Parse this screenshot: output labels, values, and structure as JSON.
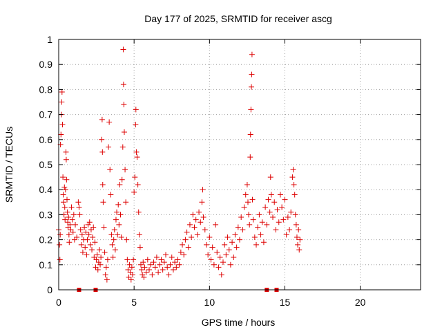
{
  "chart_data": {
    "type": "scatter",
    "title": "Day 177 of 2025, SRMTID for receiver ascg",
    "xlabel": "GPS time / hours",
    "ylabel": "SRMTID / TECUs",
    "xlim": [
      0,
      24
    ],
    "ylim": [
      0,
      1
    ],
    "xticks": [
      0,
      5,
      10,
      15,
      20
    ],
    "xtick_labels": [
      "0",
      "5",
      "10",
      "15",
      "20"
    ],
    "yticks": [
      0,
      0.1,
      0.2,
      0.3,
      0.4,
      0.5,
      0.6,
      0.7,
      0.8,
      0.9,
      1
    ],
    "ytick_labels": [
      "0",
      "0.1",
      "0.2",
      "0.3",
      "0.4",
      "0.5",
      "0.6",
      "0.7",
      "0.8",
      "0.9",
      "1"
    ],
    "grid": true,
    "marker": "+",
    "color": "#dd0000",
    "series": [
      {
        "name": "SRMTID",
        "points": [
          [
            0.0,
            0.24
          ],
          [
            0.05,
            0.18
          ],
          [
            0.08,
            0.12
          ],
          [
            0.1,
            0.22
          ],
          [
            0.12,
            0.58
          ],
          [
            0.15,
            0.62
          ],
          [
            0.18,
            0.7
          ],
          [
            0.2,
            0.75
          ],
          [
            0.22,
            0.79
          ],
          [
            0.25,
            0.66
          ],
          [
            0.28,
            0.45
          ],
          [
            0.3,
            0.38
          ],
          [
            0.32,
            0.35
          ],
          [
            0.35,
            0.3
          ],
          [
            0.38,
            0.41
          ],
          [
            0.4,
            0.33
          ],
          [
            0.42,
            0.28
          ],
          [
            0.45,
            0.4
          ],
          [
            0.48,
            0.55
          ],
          [
            0.5,
            0.52
          ],
          [
            0.52,
            0.44
          ],
          [
            0.55,
            0.36
          ],
          [
            0.58,
            0.31
          ],
          [
            0.6,
            0.27
          ],
          [
            0.62,
            0.25
          ],
          [
            0.65,
            0.29
          ],
          [
            0.68,
            0.22
          ],
          [
            0.7,
            0.19
          ],
          [
            0.75,
            0.26
          ],
          [
            0.8,
            0.24
          ],
          [
            0.85,
            0.33
          ],
          [
            0.9,
            0.28
          ],
          [
            0.95,
            0.23
          ],
          [
            1.0,
            0.3
          ],
          [
            1.05,
            0.2
          ],
          [
            1.1,
            0.26
          ],
          [
            1.2,
            0.21
          ],
          [
            1.3,
            0.35
          ],
          [
            1.35,
            0.33
          ],
          [
            1.4,
            0.3
          ],
          [
            1.45,
            0.24
          ],
          [
            1.5,
            0.18
          ],
          [
            1.55,
            0.22
          ],
          [
            1.6,
            0.15
          ],
          [
            1.65,
            0.2
          ],
          [
            1.7,
            0.25
          ],
          [
            1.75,
            0.17
          ],
          [
            1.8,
            0.23
          ],
          [
            1.85,
            0.14
          ],
          [
            1.9,
            0.2
          ],
          [
            1.95,
            0.26
          ],
          [
            2.0,
            0.22
          ],
          [
            2.05,
            0.27
          ],
          [
            2.1,
            0.18
          ],
          [
            2.15,
            0.24
          ],
          [
            2.2,
            0.16
          ],
          [
            2.25,
            0.21
          ],
          [
            2.3,
            0.25
          ],
          [
            2.35,
            0.13
          ],
          [
            2.4,
            0.19
          ],
          [
            2.45,
            0.09
          ],
          [
            2.5,
            0.12
          ],
          [
            2.55,
            0.14
          ],
          [
            2.6,
            0.08
          ],
          [
            2.65,
            0.11
          ],
          [
            2.7,
            0.16
          ],
          [
            2.75,
            0.1
          ],
          [
            2.8,
            0.13
          ],
          [
            2.85,
            0.6
          ],
          [
            2.88,
            0.68
          ],
          [
            2.9,
            0.55
          ],
          [
            2.92,
            0.42
          ],
          [
            2.95,
            0.35
          ],
          [
            3.0,
            0.25
          ],
          [
            3.05,
            0.15
          ],
          [
            3.1,
            0.06
          ],
          [
            3.15,
            0.09
          ],
          [
            3.2,
            0.04
          ],
          [
            3.25,
            0.12
          ],
          [
            3.3,
            0.57
          ],
          [
            3.35,
            0.67
          ],
          [
            3.4,
            0.48
          ],
          [
            3.45,
            0.38
          ],
          [
            3.5,
            0.22
          ],
          [
            3.55,
            0.18
          ],
          [
            3.6,
            0.13
          ],
          [
            3.65,
            0.2
          ],
          [
            3.7,
            0.24
          ],
          [
            3.75,
            0.16
          ],
          [
            3.8,
            0.28
          ],
          [
            3.85,
            0.31
          ],
          [
            3.9,
            0.22
          ],
          [
            3.95,
            0.34
          ],
          [
            4.0,
            0.26
          ],
          [
            4.05,
            0.42
          ],
          [
            4.1,
            0.3
          ],
          [
            4.15,
            0.21
          ],
          [
            4.2,
            0.44
          ],
          [
            4.25,
            0.57
          ],
          [
            4.28,
            0.96
          ],
          [
            4.3,
            0.82
          ],
          [
            4.32,
            0.74
          ],
          [
            4.35,
            0.63
          ],
          [
            4.4,
            0.48
          ],
          [
            4.45,
            0.35
          ],
          [
            4.5,
            0.2
          ],
          [
            4.55,
            0.12
          ],
          [
            4.6,
            0.08
          ],
          [
            4.65,
            0.05
          ],
          [
            4.7,
            0.1
          ],
          [
            4.75,
            0.07
          ],
          [
            4.8,
            0.04
          ],
          [
            4.85,
            0.09
          ],
          [
            4.9,
            0.06
          ],
          [
            4.95,
            0.12
          ],
          [
            5.0,
            0.39
          ],
          [
            5.05,
            0.45
          ],
          [
            5.1,
            0.66
          ],
          [
            5.12,
            0.72
          ],
          [
            5.15,
            0.55
          ],
          [
            5.2,
            0.53
          ],
          [
            5.25,
            0.42
          ],
          [
            5.3,
            0.31
          ],
          [
            5.35,
            0.22
          ],
          [
            5.4,
            0.17
          ],
          [
            5.45,
            0.1
          ],
          [
            5.5,
            0.08
          ],
          [
            5.55,
            0.06
          ],
          [
            5.6,
            0.11
          ],
          [
            5.65,
            0.05
          ],
          [
            5.7,
            0.09
          ],
          [
            5.8,
            0.07
          ],
          [
            5.9,
            0.12
          ],
          [
            6.0,
            0.08
          ],
          [
            6.1,
            0.1
          ],
          [
            6.2,
            0.06
          ],
          [
            6.3,
            0.11
          ],
          [
            6.4,
            0.09
          ],
          [
            6.5,
            0.13
          ],
          [
            6.6,
            0.07
          ],
          [
            6.7,
            0.1
          ],
          [
            6.8,
            0.12
          ],
          [
            6.9,
            0.08
          ],
          [
            7.0,
            0.11
          ],
          [
            7.1,
            0.14
          ],
          [
            7.2,
            0.09
          ],
          [
            7.3,
            0.06
          ],
          [
            7.4,
            0.1
          ],
          [
            7.5,
            0.13
          ],
          [
            7.6,
            0.08
          ],
          [
            7.7,
            0.11
          ],
          [
            7.8,
            0.09
          ],
          [
            7.9,
            0.12
          ],
          [
            8.0,
            0.1
          ],
          [
            8.1,
            0.15
          ],
          [
            8.2,
            0.18
          ],
          [
            8.3,
            0.14
          ],
          [
            8.4,
            0.2
          ],
          [
            8.5,
            0.23
          ],
          [
            8.6,
            0.17
          ],
          [
            8.7,
            0.26
          ],
          [
            8.8,
            0.21
          ],
          [
            8.9,
            0.3
          ],
          [
            9.0,
            0.25
          ],
          [
            9.1,
            0.28
          ],
          [
            9.2,
            0.22
          ],
          [
            9.3,
            0.31
          ],
          [
            9.4,
            0.27
          ],
          [
            9.5,
            0.35
          ],
          [
            9.55,
            0.4
          ],
          [
            9.6,
            0.29
          ],
          [
            9.7,
            0.24
          ],
          [
            9.8,
            0.18
          ],
          [
            9.9,
            0.14
          ],
          [
            10.0,
            0.21
          ],
          [
            10.1,
            0.12
          ],
          [
            10.2,
            0.17
          ],
          [
            10.3,
            0.1
          ],
          [
            10.4,
            0.26
          ],
          [
            10.5,
            0.15
          ],
          [
            10.6,
            0.09
          ],
          [
            10.7,
            0.13
          ],
          [
            10.8,
            0.06
          ],
          [
            10.9,
            0.11
          ],
          [
            11.0,
            0.18
          ],
          [
            11.1,
            0.14
          ],
          [
            11.2,
            0.21
          ],
          [
            11.3,
            0.16
          ],
          [
            11.4,
            0.1
          ],
          [
            11.5,
            0.19
          ],
          [
            11.6,
            0.13
          ],
          [
            11.7,
            0.22
          ],
          [
            11.8,
            0.17
          ],
          [
            11.9,
            0.25
          ],
          [
            12.0,
            0.2
          ],
          [
            12.1,
            0.29
          ],
          [
            12.2,
            0.24
          ],
          [
            12.3,
            0.33
          ],
          [
            12.4,
            0.38
          ],
          [
            12.5,
            0.42
          ],
          [
            12.55,
            0.35
          ],
          [
            12.6,
            0.3
          ],
          [
            12.65,
            0.26
          ],
          [
            12.7,
            0.53
          ],
          [
            12.72,
            0.62
          ],
          [
            12.75,
            0.72
          ],
          [
            12.78,
            0.81
          ],
          [
            12.8,
            0.86
          ],
          [
            12.82,
            0.94
          ],
          [
            12.85,
            0.36
          ],
          [
            12.9,
            0.28
          ],
          [
            13.0,
            0.21
          ],
          [
            13.1,
            0.18
          ],
          [
            13.2,
            0.25
          ],
          [
            13.3,
            0.3
          ],
          [
            13.4,
            0.22
          ],
          [
            13.5,
            0.27
          ],
          [
            13.6,
            0.19
          ],
          [
            13.7,
            0.33
          ],
          [
            13.8,
            0.26
          ],
          [
            13.9,
            0.36
          ],
          [
            14.0,
            0.31
          ],
          [
            14.05,
            0.45
          ],
          [
            14.1,
            0.38
          ],
          [
            14.2,
            0.29
          ],
          [
            14.3,
            0.35
          ],
          [
            14.4,
            0.24
          ],
          [
            14.5,
            0.32
          ],
          [
            14.6,
            0.27
          ],
          [
            14.7,
            0.38
          ],
          [
            14.8,
            0.33
          ],
          [
            14.9,
            0.28
          ],
          [
            15.0,
            0.36
          ],
          [
            15.1,
            0.22
          ],
          [
            15.2,
            0.29
          ],
          [
            15.3,
            0.24
          ],
          [
            15.4,
            0.31
          ],
          [
            15.5,
            0.45
          ],
          [
            15.55,
            0.48
          ],
          [
            15.6,
            0.42
          ],
          [
            15.65,
            0.38
          ],
          [
            15.7,
            0.3
          ],
          [
            15.75,
            0.26
          ],
          [
            15.8,
            0.21
          ],
          [
            15.85,
            0.18
          ],
          [
            15.9,
            0.24
          ],
          [
            15.95,
            0.16
          ],
          [
            16.0,
            0.2
          ]
        ]
      }
    ],
    "baseline_markers": [
      1.35,
      2.45,
      13.8,
      14.45
    ]
  }
}
